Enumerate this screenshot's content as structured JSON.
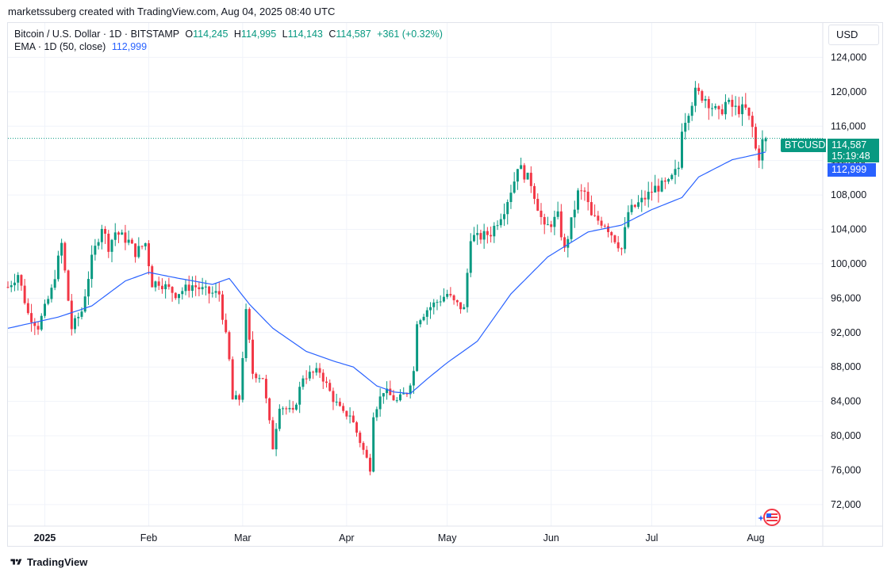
{
  "header": {
    "attribution": "marketssuberg created with TradingView.com, Aug 04, 2025 08:40 UTC"
  },
  "legend": {
    "symbol": "Bitcoin / U.S. Dollar · 1D · BITSTAMP",
    "open_label": "O",
    "open": "114,245",
    "high_label": "H",
    "high": "114,995",
    "low_label": "L",
    "low": "114,143",
    "close_label": "C",
    "close": "114,587",
    "change": "+361 (+0.32%)",
    "ema_label": "EMA · 1D (50, close)",
    "ema_value": "112,999"
  },
  "currency_button": "USD",
  "badges": {
    "symbol": "BTCUSD",
    "price": "114,587",
    "countdown": "15:19:48",
    "ema": "112,999"
  },
  "footer": {
    "brand": "TradingView"
  },
  "colors": {
    "up": "#089981",
    "down": "#f23645",
    "ema": "#2962ff",
    "grid": "#f0f3fa"
  },
  "icons": {
    "tv_logo": "tradingview-logo-icon",
    "event": "us-flag-event-icon"
  },
  "chart_data": {
    "type": "candlestick",
    "x_ticks": [
      "2025",
      "Feb",
      "Mar",
      "Apr",
      "May",
      "Jun",
      "Jul",
      "Aug"
    ],
    "x_tick_dates": [
      "2025-01-01",
      "2025-02-01",
      "2025-03-01",
      "2025-04-01",
      "2025-05-01",
      "2025-06-01",
      "2025-07-01",
      "2025-08-01"
    ],
    "y_ticks": [
      72000,
      76000,
      80000,
      84000,
      88000,
      92000,
      96000,
      100000,
      104000,
      108000,
      112000,
      116000,
      120000,
      124000
    ],
    "ylim": [
      69500,
      128000
    ],
    "xlim": [
      "2024-12-21",
      "2025-08-21"
    ],
    "last_price": 114587,
    "ema_last": 112999,
    "ema_keypoints": [
      [
        "2024-12-21",
        92500
      ],
      [
        "2025-01-05",
        93800
      ],
      [
        "2025-01-15",
        95100
      ],
      [
        "2025-01-25",
        98000
      ],
      [
        "2025-02-01",
        99000
      ],
      [
        "2025-02-10",
        98300
      ],
      [
        "2025-02-20",
        97600
      ],
      [
        "2025-02-25",
        98300
      ],
      [
        "2025-03-03",
        95300
      ],
      [
        "2025-03-10",
        92500
      ],
      [
        "2025-03-20",
        89800
      ],
      [
        "2025-03-28",
        88700
      ],
      [
        "2025-04-03",
        88000
      ],
      [
        "2025-04-10",
        85800
      ],
      [
        "2025-04-15",
        85100
      ],
      [
        "2025-04-20",
        84900
      ],
      [
        "2025-04-25",
        86600
      ],
      [
        "2025-05-01",
        88500
      ],
      [
        "2025-05-10",
        91000
      ],
      [
        "2025-05-20",
        96500
      ],
      [
        "2025-05-31",
        100800
      ],
      [
        "2025-06-12",
        103700
      ],
      [
        "2025-06-22",
        104500
      ],
      [
        "2025-07-01",
        106300
      ],
      [
        "2025-07-10",
        107700
      ],
      [
        "2025-07-15",
        110100
      ],
      [
        "2025-07-25",
        112100
      ],
      [
        "2025-08-01",
        112700
      ],
      [
        "2025-08-04",
        112999
      ]
    ],
    "closes": [
      [
        "2024-12-21",
        97300
      ],
      [
        "2024-12-24",
        98800
      ],
      [
        "2024-12-27",
        94200
      ],
      [
        "2024-12-30",
        92700
      ],
      [
        "2025-01-03",
        96900
      ],
      [
        "2025-01-06",
        102300
      ],
      [
        "2025-01-09",
        92500
      ],
      [
        "2025-01-12",
        94500
      ],
      [
        "2025-01-15",
        100500
      ],
      [
        "2025-01-18",
        104400
      ],
      [
        "2025-01-20",
        102000
      ],
      [
        "2025-01-22",
        103700
      ],
      [
        "2025-01-26",
        102600
      ],
      [
        "2025-01-28",
        101300
      ],
      [
        "2025-01-31",
        102400
      ],
      [
        "2025-02-02",
        97700
      ],
      [
        "2025-02-04",
        97900
      ],
      [
        "2025-02-09",
        96500
      ],
      [
        "2025-02-14",
        97500
      ],
      [
        "2025-02-19",
        96600
      ],
      [
        "2025-02-22",
        96500
      ],
      [
        "2025-02-24",
        91500
      ],
      [
        "2025-02-25",
        88700
      ],
      [
        "2025-02-26",
        84200
      ],
      [
        "2025-02-28",
        84300
      ],
      [
        "2025-03-02",
        94300
      ],
      [
        "2025-03-04",
        87300
      ],
      [
        "2025-03-07",
        86800
      ],
      [
        "2025-03-10",
        78700
      ],
      [
        "2025-03-12",
        83600
      ],
      [
        "2025-03-16",
        82600
      ],
      [
        "2025-03-19",
        86900
      ],
      [
        "2025-03-24",
        87500
      ],
      [
        "2025-03-28",
        84300
      ],
      [
        "2025-03-31",
        82500
      ],
      [
        "2025-04-02",
        82500
      ],
      [
        "2025-04-06",
        78300
      ],
      [
        "2025-04-08",
        76300
      ],
      [
        "2025-04-09",
        82600
      ],
      [
        "2025-04-12",
        85300
      ],
      [
        "2025-04-16",
        84000
      ],
      [
        "2025-04-19",
        85100
      ],
      [
        "2025-04-21",
        87500
      ],
      [
        "2025-04-22",
        93400
      ],
      [
        "2025-04-25",
        94700
      ],
      [
        "2025-05-01",
        96500
      ],
      [
        "2025-05-03",
        95500
      ],
      [
        "2025-05-06",
        94700
      ],
      [
        "2025-05-08",
        103200
      ],
      [
        "2025-05-10",
        103000
      ],
      [
        "2025-05-14",
        103600
      ],
      [
        "2025-05-18",
        106400
      ],
      [
        "2025-05-21",
        109700
      ],
      [
        "2025-05-22",
        111500
      ],
      [
        "2025-05-26",
        109400
      ],
      [
        "2025-05-30",
        104000
      ],
      [
        "2025-06-03",
        105500
      ],
      [
        "2025-06-05",
        101500
      ],
      [
        "2025-06-09",
        108200
      ],
      [
        "2025-06-11",
        108300
      ],
      [
        "2025-06-13",
        105400
      ],
      [
        "2025-06-17",
        104700
      ],
      [
        "2025-06-22",
        101700
      ],
      [
        "2025-06-24",
        106000
      ],
      [
        "2025-06-28",
        107300
      ],
      [
        "2025-07-02",
        108800
      ],
      [
        "2025-07-06",
        109300
      ],
      [
        "2025-07-09",
        111200
      ],
      [
        "2025-07-10",
        115900
      ],
      [
        "2025-07-14",
        119900
      ],
      [
        "2025-07-17",
        119300
      ],
      [
        "2025-07-21",
        117300
      ],
      [
        "2025-07-23",
        118700
      ],
      [
        "2025-07-26",
        118000
      ],
      [
        "2025-07-29",
        117900
      ],
      [
        "2025-07-31",
        115800
      ],
      [
        "2025-08-01",
        113300
      ],
      [
        "2025-08-02",
        112500
      ],
      [
        "2025-08-03",
        114200
      ],
      [
        "2025-08-04",
        114587
      ]
    ]
  }
}
